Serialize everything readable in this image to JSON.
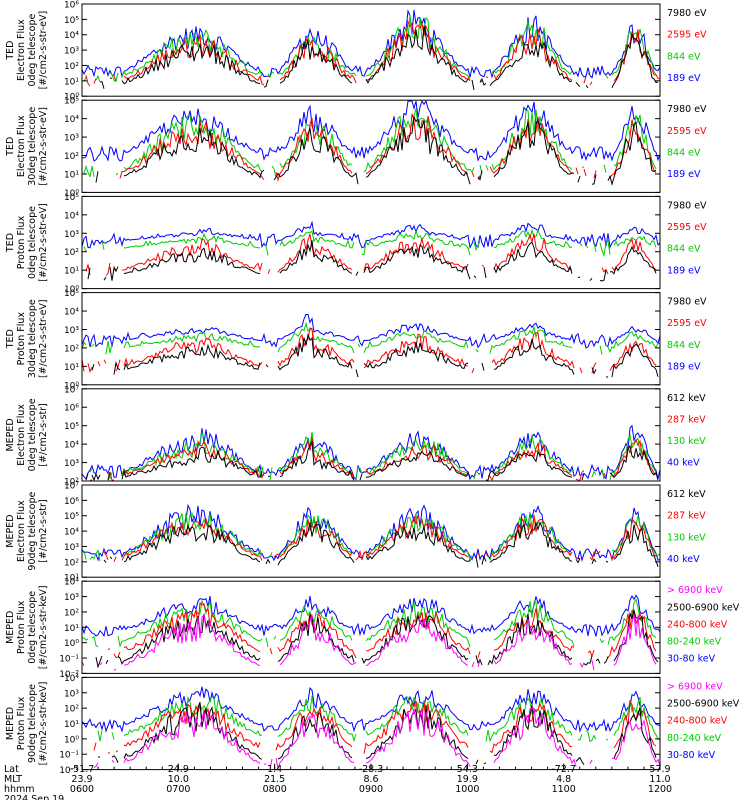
{
  "chart_data": [
    {
      "type": "line",
      "ylabel": [
        "TED",
        "Electron Flux",
        "0deg telescope",
        "[#/cm2-s-str-eV]"
      ],
      "y_ticks": [
        "10⁶",
        "10⁵",
        "10⁴",
        "10³",
        "10²",
        "10¹",
        "10⁰"
      ],
      "ylim_log": [
        0,
        6
      ],
      "legend": [
        {
          "label": "7980 eV",
          "color": "#000000"
        },
        {
          "label": "2595 eV",
          "color": "#ff0000"
        },
        {
          "label": "844 eV",
          "color": "#00cc00"
        },
        {
          "label": "189 eV",
          "color": "#0000ff"
        }
      ],
      "base": [
        0.8,
        1.0,
        1.3,
        1.6
      ],
      "peaks": [
        4.6,
        4.3,
        4.7,
        4.8,
        4.1,
        5.4,
        4.6,
        5.0,
        4.5,
        4.9
      ]
    },
    {
      "type": "line",
      "ylabel": [
        "TED",
        "Electron Flux",
        "30deg telescope",
        "[#/cm2-s-str-eV]"
      ],
      "y_ticks": [
        "10⁵",
        "10⁴",
        "10³",
        "10²",
        "10¹",
        "10⁰"
      ],
      "ylim_log": [
        0,
        5
      ],
      "legend": [
        {
          "label": "7980 eV",
          "color": "#000000"
        },
        {
          "label": "2595 eV",
          "color": "#ff0000"
        },
        {
          "label": "844 eV",
          "color": "#00cc00"
        },
        {
          "label": "189 eV",
          "color": "#0000ff"
        }
      ],
      "base": [
        0.8,
        1.0,
        1.2,
        2.1
      ],
      "peaks": [
        4.6,
        4.3,
        4.5,
        4.6,
        4.1,
        4.9,
        4.4,
        4.8,
        4.3,
        4.6
      ]
    },
    {
      "type": "line",
      "ylabel": [
        "TED",
        "Proton Flux",
        "0deg telescope",
        "[#/cm2-s-str-eV]"
      ],
      "y_ticks": [
        "10⁵",
        "10⁴",
        "10³",
        "10²",
        "10¹",
        "10⁰"
      ],
      "ylim_log": [
        0,
        5
      ],
      "legend": [
        {
          "label": "7980 eV",
          "color": "#000000"
        },
        {
          "label": "2595 eV",
          "color": "#ff0000"
        },
        {
          "label": "844 eV",
          "color": "#00cc00"
        },
        {
          "label": "189 eV",
          "color": "#0000ff"
        }
      ],
      "base": [
        0.8,
        1.0,
        2.2,
        2.6
      ],
      "peaks": [
        3.2,
        3.0,
        3.3,
        3.6,
        3.1,
        3.4,
        3.2,
        3.5,
        3.0,
        3.3
      ]
    },
    {
      "type": "line",
      "ylabel": [
        "TED",
        "Proton Flux",
        "30deg telescope",
        "[#/cm2-s-str-eV]"
      ],
      "y_ticks": [
        "10⁵",
        "10⁴",
        "10³",
        "10²",
        "10¹",
        "10⁰"
      ],
      "ylim_log": [
        0,
        5
      ],
      "legend": [
        {
          "label": "7980 eV",
          "color": "#000000"
        },
        {
          "label": "2595 eV",
          "color": "#ff0000"
        },
        {
          "label": "844 eV",
          "color": "#00cc00"
        },
        {
          "label": "189 eV",
          "color": "#0000ff"
        }
      ],
      "base": [
        0.8,
        1.0,
        2.0,
        2.4
      ],
      "peaks": [
        3.1,
        3.0,
        3.2,
        3.9,
        3.0,
        3.3,
        3.1,
        3.4,
        3.0,
        3.2
      ]
    },
    {
      "type": "line",
      "ylabel": [
        "MEPED",
        "Electron Flux",
        "0deg telescope",
        "[#/cm2-s-str]"
      ],
      "y_ticks": [
        "10⁷",
        "10⁶",
        "10⁵",
        "10⁴",
        "10³",
        "10²"
      ],
      "ylim_log": [
        1.8,
        7
      ],
      "legend": [
        {
          "label": "612 keV",
          "color": "#000000"
        },
        {
          "label": "287 keV",
          "color": "#ff0000"
        },
        {
          "label": "130 keV",
          "color": "#00cc00"
        },
        {
          "label": "40 keV",
          "color": "#0000ff"
        }
      ],
      "base": [
        2.0,
        2.1,
        2.2,
        2.3
      ],
      "peaks": [
        4.6,
        4.2,
        4.8,
        4.9,
        4.0,
        4.4,
        4.7,
        4.6,
        4.2,
        4.9
      ]
    },
    {
      "type": "line",
      "ylabel": [
        "MEPED",
        "Electron Flux",
        "90deg telescope",
        "[#/cm2-s-str]"
      ],
      "y_ticks": [
        "10⁷",
        "10⁶",
        "10⁵",
        "10⁴",
        "10³",
        "10²",
        "10¹"
      ],
      "ylim_log": [
        1,
        7
      ],
      "legend": [
        {
          "label": "612 keV",
          "color": "#000000"
        },
        {
          "label": "287 keV",
          "color": "#ff0000"
        },
        {
          "label": "130 keV",
          "color": "#00cc00"
        },
        {
          "label": "40 keV",
          "color": "#0000ff"
        }
      ],
      "base": [
        2.0,
        2.3,
        2.4,
        2.5
      ],
      "peaks": [
        5.5,
        5.4,
        5.6,
        5.6,
        5.3,
        5.5,
        5.4,
        5.6,
        5.2,
        5.5
      ]
    },
    {
      "type": "line",
      "ylabel": [
        "MEPED",
        "Proton Flux",
        "0deg telescope",
        "[#/cm2-s-str-keV]"
      ],
      "y_ticks": [
        "10⁴",
        "10³",
        "10²",
        "10¹",
        "10⁰",
        "10⁻¹",
        "10⁻²"
      ],
      "ylim_log": [
        -2,
        4
      ],
      "legend": [
        {
          "label": "> 6900 keV",
          "color": "#ff00ff"
        },
        {
          "label": "2500-6900 keV",
          "color": "#000000"
        },
        {
          "label": "240-800 keV",
          "color": "#ff0000"
        },
        {
          "label": "80-240 keV",
          "color": "#00cc00"
        },
        {
          "label": "30-80 keV",
          "color": "#0000ff"
        }
      ],
      "base": [
        -1.5,
        -1.2,
        -0.6,
        0.1,
        0.8
      ],
      "peaks": [
        3.0,
        2.6,
        3.1,
        3.0,
        2.5,
        2.8,
        3.1,
        2.9,
        2.6,
        3.0
      ]
    },
    {
      "type": "line",
      "ylabel": [
        "MEPED",
        "Proton Flux",
        "90deg telescope",
        "[#/cm2-s-str-keV]"
      ],
      "y_ticks": [
        "10⁴",
        "10³",
        "10²",
        "10¹",
        "10⁰",
        "10⁻¹",
        "10⁻²"
      ],
      "ylim_log": [
        -2,
        4
      ],
      "legend": [
        {
          "label": "> 6900 keV",
          "color": "#ff00ff"
        },
        {
          "label": "2500-6900 keV",
          "color": "#000000"
        },
        {
          "label": "240-800 keV",
          "color": "#ff0000"
        },
        {
          "label": "80-240 keV",
          "color": "#00cc00"
        },
        {
          "label": "30-80 keV",
          "color": "#0000ff"
        }
      ],
      "base": [
        -1.6,
        -1.3,
        -0.6,
        0.2,
        0.9
      ],
      "peaks": [
        3.2,
        2.9,
        3.3,
        3.2,
        2.8,
        3.1,
        3.3,
        3.1,
        2.9,
        3.2
      ]
    }
  ],
  "x_axis": {
    "row_labels": [
      "Lat",
      "MLT",
      "hhmm",
      "2024 Sep 19"
    ],
    "ticks": [
      {
        "lat": "-51.7",
        "mlt": "23.9",
        "hhmm": "0600"
      },
      {
        "lat": "24.9",
        "mlt": "10.0",
        "hhmm": "0700"
      },
      {
        "lat": "1.4",
        "mlt": "21.5",
        "hhmm": "0800"
      },
      {
        "lat": "-28.3",
        "mlt": "8.6",
        "hhmm": "0900"
      },
      {
        "lat": "54.3",
        "mlt": "19.9",
        "hhmm": "1000"
      },
      {
        "lat": "-72.7",
        "mlt": "4.8",
        "hhmm": "1100"
      },
      {
        "lat": "57.9",
        "mlt": "11.0",
        "hhmm": "1200"
      }
    ]
  },
  "activity_windows": [
    [
      0.07,
      0.31
    ],
    [
      0.34,
      0.47
    ],
    [
      0.49,
      0.67
    ],
    [
      0.71,
      0.85
    ],
    [
      0.92,
      0.995
    ]
  ]
}
